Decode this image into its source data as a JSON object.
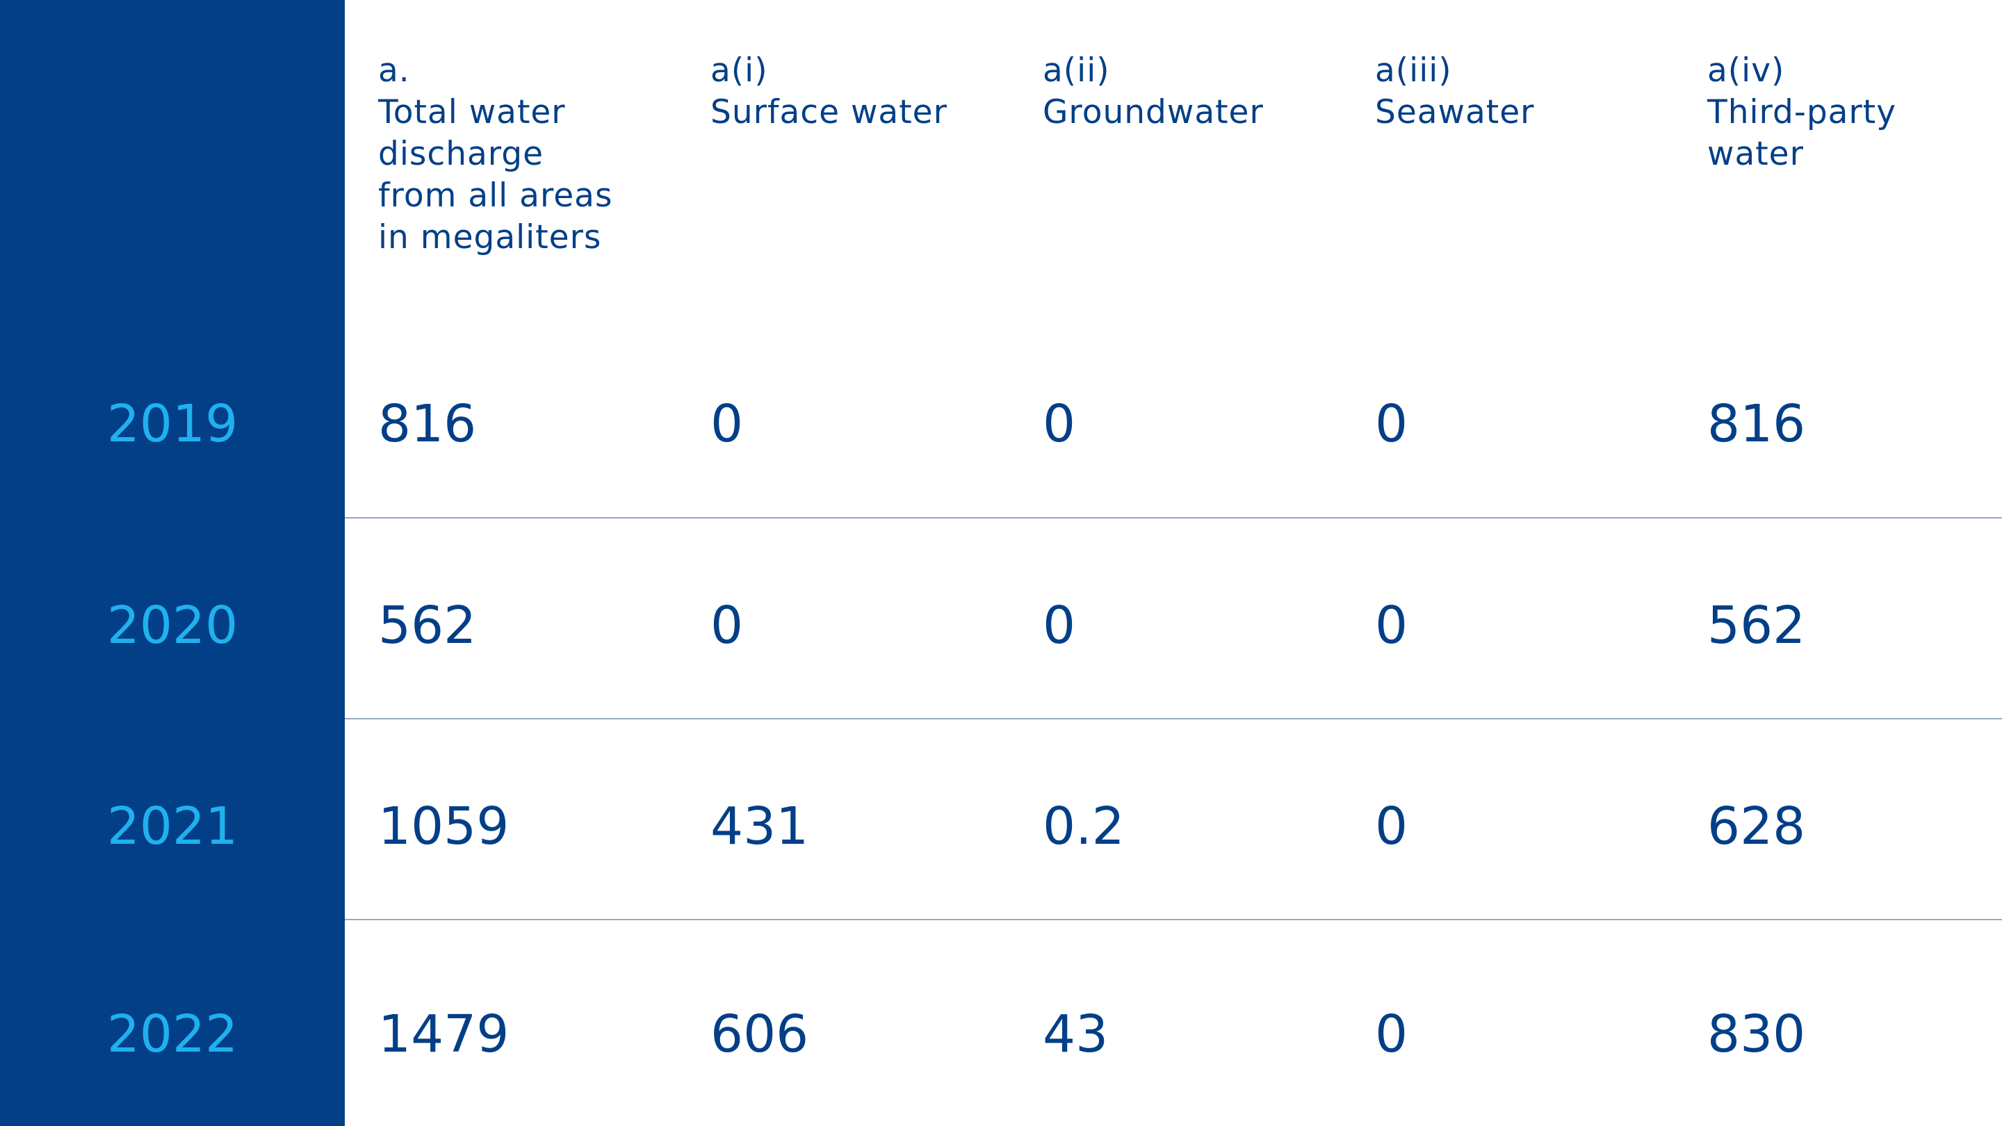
{
  "table": {
    "columns": [
      {
        "code": "a.",
        "label": "Total water\ndischarge\nfrom all areas\nin megaliters"
      },
      {
        "code": "a(i)",
        "label": "Surface water"
      },
      {
        "code": "a(ii)",
        "label": "Groundwater"
      },
      {
        "code": "a(iii)",
        "label": "Seawater"
      },
      {
        "code": "a(iv)",
        "label": "Third-party\nwater"
      }
    ],
    "rows": [
      {
        "year": "2019",
        "values": [
          "816",
          "0",
          "0",
          "0",
          "816"
        ]
      },
      {
        "year": "2020",
        "values": [
          "562",
          "0",
          "0",
          "0",
          "562"
        ]
      },
      {
        "year": "2021",
        "values": [
          "1059",
          "431",
          "0.2",
          "0",
          "628"
        ]
      },
      {
        "year": "2022",
        "values": [
          "1479",
          "606",
          "43",
          "0",
          "830"
        ]
      }
    ]
  },
  "colors": {
    "sidebar": "#033f87",
    "year_text": "#1fb1ee",
    "value_text": "#033f87",
    "divider": "#9aa8c3"
  }
}
